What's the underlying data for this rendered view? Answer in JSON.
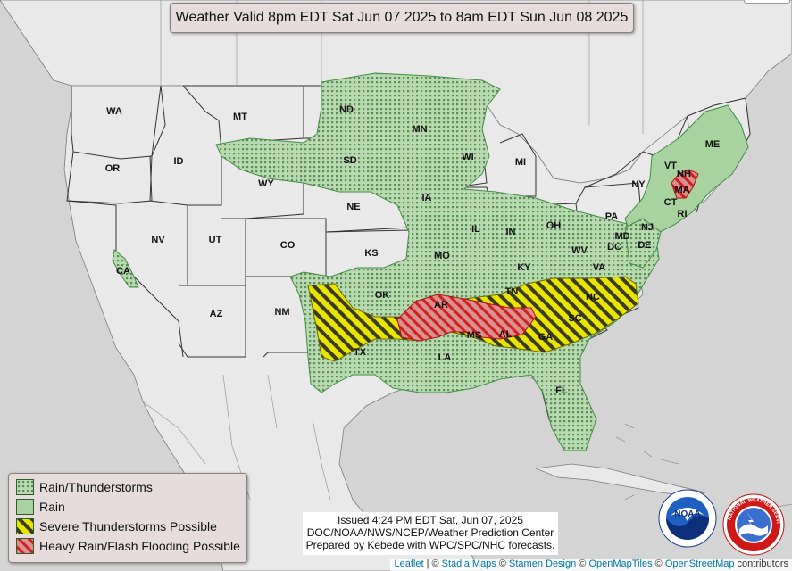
{
  "title": "Weather Valid 8pm EDT Sat Jun 07 2025 to 8am EDT Sun Jun 08 2025",
  "legend": {
    "items": [
      {
        "label": "Rain/Thunderstorms",
        "pattern": "dots",
        "color": "#6aa56a"
      },
      {
        "label": "Rain",
        "pattern": "solid",
        "color": "#9ccc9c"
      },
      {
        "label": "Severe Thunderstorms Possible",
        "pattern": "yellow-hatch",
        "color": "#e6e600"
      },
      {
        "label": "Heavy Rain/Flash Flooding Possible",
        "pattern": "red-hatch",
        "color": "#e03030"
      }
    ]
  },
  "issued": {
    "line1": "Issued  4:24 PM EDT  Sat, Jun 07, 2025",
    "line2": "DOC/NOAA/NWS/NCEP/Weather Prediction Center",
    "line3": "Prepared by Kebede with WPC/SPC/NHC forecasts."
  },
  "states": [
    "WA",
    "OR",
    "CA",
    "ID",
    "NV",
    "MT",
    "WY",
    "UT",
    "AZ",
    "CO",
    "NM",
    "ND",
    "SD",
    "NE",
    "KS",
    "OK",
    "TX",
    "MN",
    "IA",
    "MO",
    "AR",
    "LA",
    "WI",
    "IL",
    "MI",
    "IN",
    "KY",
    "TN",
    "MS",
    "AL",
    "OH",
    "WV",
    "VA",
    "NC",
    "SC",
    "GA",
    "FL",
    "PA",
    "NY",
    "MD",
    "DE",
    "NJ",
    "DC",
    "CT",
    "RI",
    "MA",
    "VT",
    "NH",
    "ME"
  ],
  "logos": {
    "noaa": "NOAA",
    "nws": "NATIONAL WEATHER SERVICE"
  },
  "attribution": {
    "leaflet": "Leaflet",
    "sep1": " | © ",
    "stadia": "Stadia Maps",
    "sep2": " © ",
    "stamen": "Stamen Design",
    "sep3": " © ",
    "omt": "OpenMapTiles",
    "sep4": " © ",
    "osm": "OpenStreetMap",
    "contrib": " contributors"
  }
}
